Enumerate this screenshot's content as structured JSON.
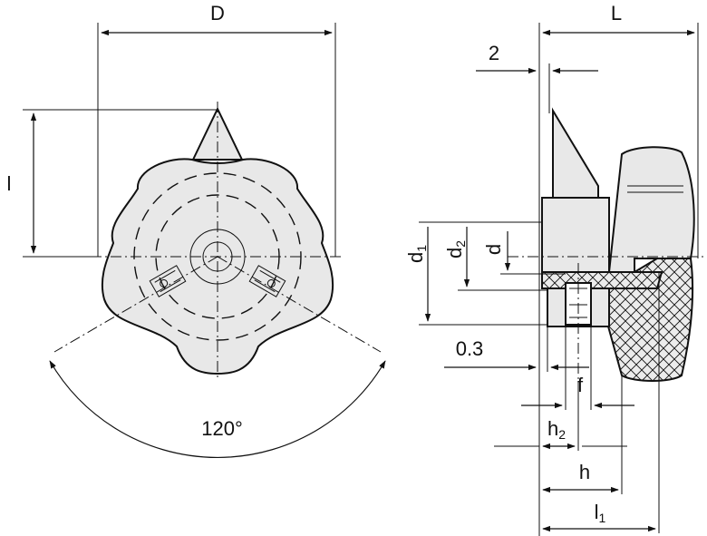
{
  "labels": {
    "D": "D",
    "l": "l",
    "L": "L",
    "two": "2",
    "d1": "d",
    "d1_sub": "1",
    "d2": "d",
    "d2_sub": "2",
    "d": "d",
    "point3": "0.3",
    "f": "f",
    "h2": "h",
    "h2_sub": "2",
    "h": "h",
    "l1": "l",
    "l1_sub": "1",
    "angle": "120°"
  },
  "colors": {
    "part_fill": "#e8e8e8",
    "line": "#111111",
    "background": "#ffffff"
  }
}
